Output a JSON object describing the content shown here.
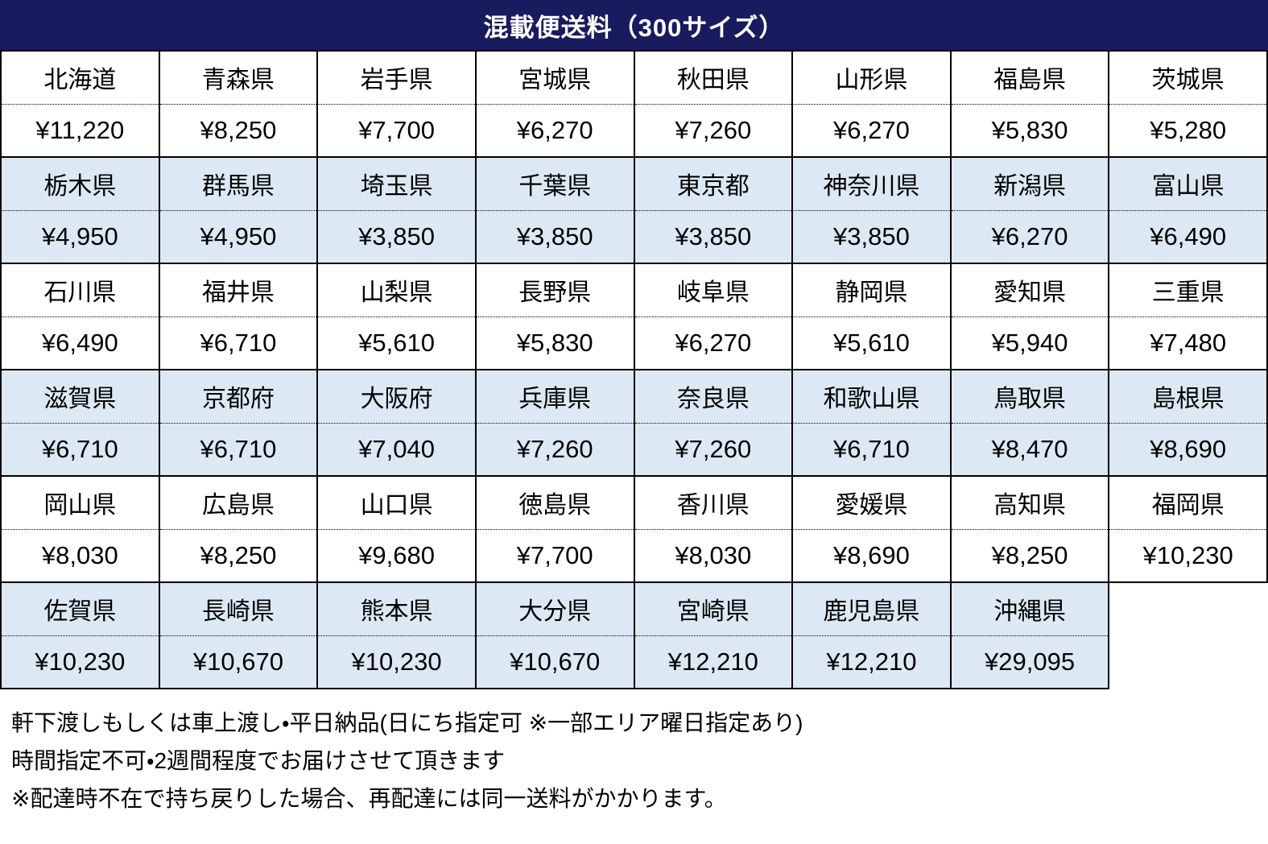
{
  "header": {
    "title": "混載便送料（300サイズ）"
  },
  "colors": {
    "title_bg": "#191b5f",
    "title_text": "#ffffff",
    "shaded_row_bg": "#dce9f5",
    "plain_row_bg": "#ffffff",
    "border": "#000000",
    "text": "#000000"
  },
  "table": {
    "columns": 8,
    "groups": [
      {
        "shaded": false,
        "cells": [
          {
            "prefecture": "北海道",
            "fee": "¥11,220"
          },
          {
            "prefecture": "青森県",
            "fee": "¥8,250"
          },
          {
            "prefecture": "岩手県",
            "fee": "¥7,700"
          },
          {
            "prefecture": "宮城県",
            "fee": "¥6,270"
          },
          {
            "prefecture": "秋田県",
            "fee": "¥7,260"
          },
          {
            "prefecture": "山形県",
            "fee": "¥6,270"
          },
          {
            "prefecture": "福島県",
            "fee": "¥5,830"
          },
          {
            "prefecture": "茨城県",
            "fee": "¥5,280"
          }
        ]
      },
      {
        "shaded": true,
        "cells": [
          {
            "prefecture": "栃木県",
            "fee": "¥4,950"
          },
          {
            "prefecture": "群馬県",
            "fee": "¥4,950"
          },
          {
            "prefecture": "埼玉県",
            "fee": "¥3,850"
          },
          {
            "prefecture": "千葉県",
            "fee": "¥3,850"
          },
          {
            "prefecture": "東京都",
            "fee": "¥3,850"
          },
          {
            "prefecture": "神奈川県",
            "fee": "¥3,850"
          },
          {
            "prefecture": "新潟県",
            "fee": "¥6,270"
          },
          {
            "prefecture": "富山県",
            "fee": "¥6,490"
          }
        ]
      },
      {
        "shaded": false,
        "cells": [
          {
            "prefecture": "石川県",
            "fee": "¥6,490"
          },
          {
            "prefecture": "福井県",
            "fee": "¥6,710"
          },
          {
            "prefecture": "山梨県",
            "fee": "¥5,610"
          },
          {
            "prefecture": "長野県",
            "fee": "¥5,830"
          },
          {
            "prefecture": "岐阜県",
            "fee": "¥6,270"
          },
          {
            "prefecture": "静岡県",
            "fee": "¥5,610"
          },
          {
            "prefecture": "愛知県",
            "fee": "¥5,940"
          },
          {
            "prefecture": "三重県",
            "fee": "¥7,480"
          }
        ]
      },
      {
        "shaded": true,
        "cells": [
          {
            "prefecture": "滋賀県",
            "fee": "¥6,710"
          },
          {
            "prefecture": "京都府",
            "fee": "¥6,710"
          },
          {
            "prefecture": "大阪府",
            "fee": "¥7,040"
          },
          {
            "prefecture": "兵庫県",
            "fee": "¥7,260"
          },
          {
            "prefecture": "奈良県",
            "fee": "¥7,260"
          },
          {
            "prefecture": "和歌山県",
            "fee": "¥6,710"
          },
          {
            "prefecture": "鳥取県",
            "fee": "¥8,470"
          },
          {
            "prefecture": "島根県",
            "fee": "¥8,690"
          }
        ]
      },
      {
        "shaded": false,
        "cells": [
          {
            "prefecture": "岡山県",
            "fee": "¥8,030"
          },
          {
            "prefecture": "広島県",
            "fee": "¥8,250"
          },
          {
            "prefecture": "山口県",
            "fee": "¥9,680"
          },
          {
            "prefecture": "徳島県",
            "fee": "¥7,700"
          },
          {
            "prefecture": "香川県",
            "fee": "¥8,030"
          },
          {
            "prefecture": "愛媛県",
            "fee": "¥8,690"
          },
          {
            "prefecture": "高知県",
            "fee": "¥8,250"
          },
          {
            "prefecture": "福岡県",
            "fee": "¥10,230"
          }
        ]
      },
      {
        "shaded": true,
        "cells": [
          {
            "prefecture": "佐賀県",
            "fee": "¥10,230"
          },
          {
            "prefecture": "長崎県",
            "fee": "¥10,670"
          },
          {
            "prefecture": "熊本県",
            "fee": "¥10,230"
          },
          {
            "prefecture": "大分県",
            "fee": "¥10,670"
          },
          {
            "prefecture": "宮崎県",
            "fee": "¥12,210"
          },
          {
            "prefecture": "鹿児島県",
            "fee": "¥12,210"
          },
          {
            "prefecture": "沖縄県",
            "fee": "¥29,095"
          }
        ]
      }
    ]
  },
  "notes": {
    "lines": [
      "軒下渡しもしくは車上渡し・平日納品(日にち指定可 ※一部エリア曜日指定あり)",
      "時間指定不可・2週間程度でお届けさせて頂きます",
      "※配達時不在で持ち戻りした場合、再配達には同一送料がかかります。"
    ]
  }
}
